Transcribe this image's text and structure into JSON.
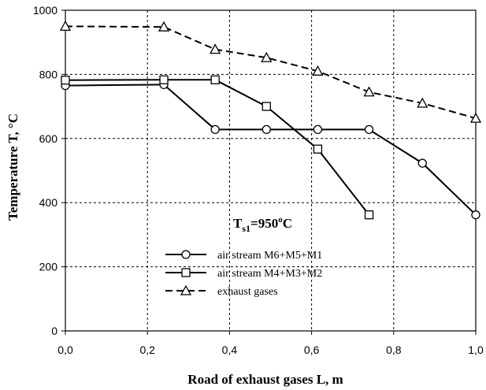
{
  "chart_data": {
    "type": "line",
    "xlabel": "Road of exhaust gases L, m",
    "ylabel": "Temperature T, °C",
    "xlim": [
      0,
      1.0
    ],
    "ylim": [
      0,
      1000
    ],
    "x_ticks": [
      "0,0",
      "0,2",
      "0,4",
      "0,6",
      "0,8",
      "1,0"
    ],
    "y_ticks": [
      "0",
      "200",
      "400",
      "600",
      "800",
      "1000"
    ],
    "grid": "dashed",
    "legend_position": "lower-center",
    "annotation": {
      "main": "T",
      "sub": "s1",
      "value": "=950",
      "sup": "o",
      "unit": "C"
    },
    "series": [
      {
        "name": "air stream M6+M5+M1",
        "marker": "circle",
        "line": "solid",
        "points": [
          [
            0,
            765
          ],
          [
            0.24,
            768
          ],
          [
            0.365,
            628
          ],
          [
            0.49,
            628
          ],
          [
            0.615,
            628
          ],
          [
            0.74,
            628
          ],
          [
            0.87,
            523
          ],
          [
            1.0,
            362
          ]
        ]
      },
      {
        "name": "air stream M4+M3+M2",
        "marker": "square",
        "line": "solid",
        "points": [
          [
            0,
            782
          ],
          [
            0.24,
            783
          ],
          [
            0.365,
            783
          ],
          [
            0.49,
            700
          ],
          [
            0.615,
            567
          ],
          [
            0.74,
            362
          ]
        ]
      },
      {
        "name": "exhaust gases",
        "marker": "triangle",
        "line": "dashed",
        "points": [
          [
            0,
            950
          ],
          [
            0.24,
            948
          ],
          [
            0.365,
            878
          ],
          [
            0.49,
            852
          ],
          [
            0.615,
            810
          ],
          [
            0.74,
            745
          ],
          [
            0.87,
            710
          ],
          [
            1.0,
            663
          ]
        ]
      }
    ]
  }
}
